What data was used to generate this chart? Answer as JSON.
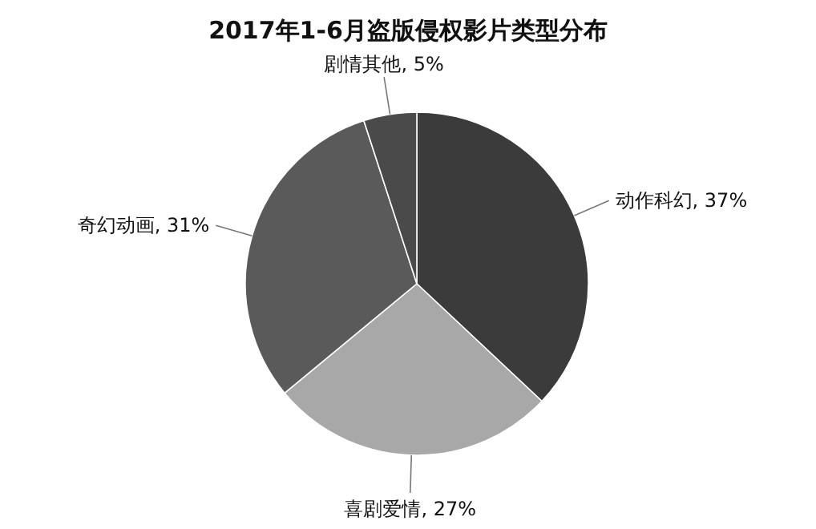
{
  "chart_data": {
    "type": "pie",
    "title": "2017年1-6月盗版侵权影片类型分布",
    "categories": [
      "动作科幻",
      "喜剧爱情",
      "奇幻动画",
      "剧情其他"
    ],
    "values": [
      37,
      27,
      31,
      5
    ],
    "value_labels": [
      "37%",
      "27%",
      "31%",
      "5%"
    ],
    "colors": [
      "#3b3b3b",
      "#a8a8a8",
      "#5a5a5a",
      "#4a4a4a"
    ],
    "legend": false
  }
}
